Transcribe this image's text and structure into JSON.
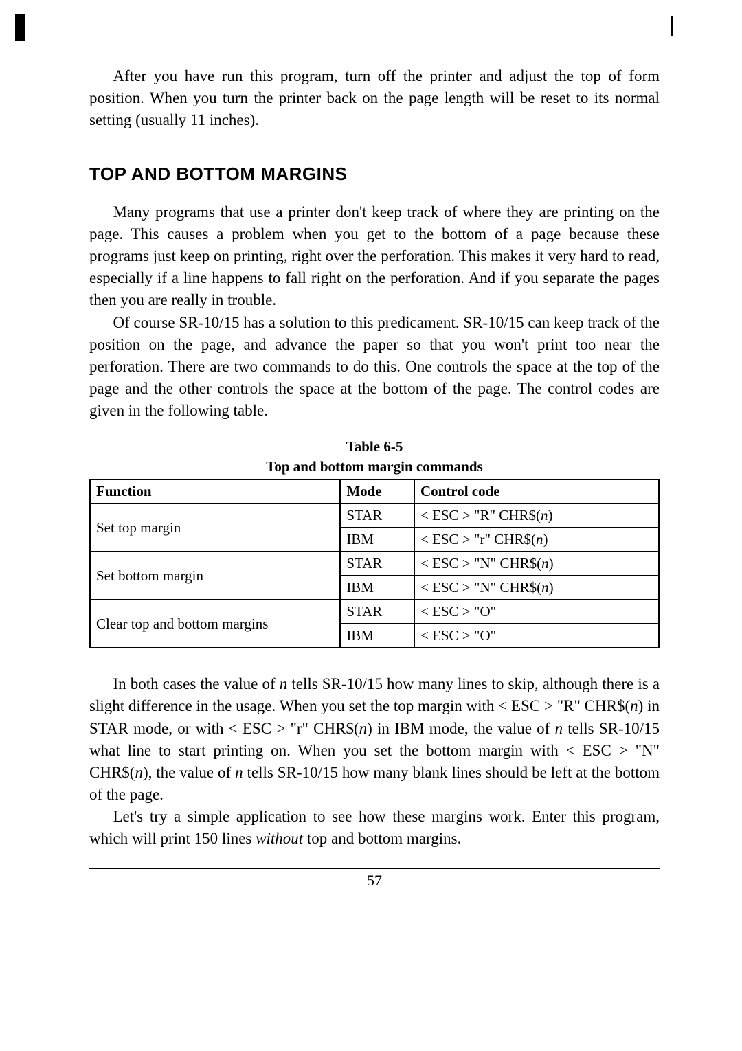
{
  "para1": "After you have run this program, turn off the printer and adjust the top of form position. When you turn the printer back on the page length will be reset to its normal setting (usually 11 inches).",
  "section_title": "TOP AND BOTTOM MARGINS",
  "para2": "Many programs that use a printer don't keep track of where they are printing on the page. This causes a problem when you get to the bottom of a page because these programs just keep on printing, right over the perforation. This makes it very hard to read, especially if a line happens to fall right on the perforation. And if you separate the pages then you are really in trouble.",
  "para3": "Of course SR-10/15 has a solution to this predicament. SR-10/15 can keep track of the position on the page, and advance the paper so that you won't print too near the perforation. There are two commands to do this. One controls the space at the top of the page and the other controls the space at the bottom of the page. The control codes are given in the following table.",
  "table": {
    "caption_line1": "Table 6-5",
    "caption_line2": "Top and bottom margin commands",
    "headers": [
      "Function",
      "Mode",
      "Control code"
    ],
    "rows": [
      {
        "func": "Set top margin",
        "mode": "STAR",
        "code_pre": "< ESC > \"R\" CHR$(",
        "code_n": "n",
        "code_post": ")"
      },
      {
        "func": "",
        "mode": "IBM",
        "code_pre": "< ESC >  \"r\"  CHR$(",
        "code_n": "n",
        "code_post": ")"
      },
      {
        "func": "Set bottom margin",
        "mode": "STAR",
        "code_pre": "< ESC > \"N\" CHR$(",
        "code_n": "n",
        "code_post": ")"
      },
      {
        "func": "",
        "mode": "IBM",
        "code_pre": "< ESC > \"N\" CHR$(",
        "code_n": "n",
        "code_post": ")"
      },
      {
        "func": "Clear top and bottom margins",
        "mode": "STAR",
        "code_pre": "< ESC > \"O\"",
        "code_n": "",
        "code_post": ""
      },
      {
        "func": "",
        "mode": "IBM",
        "code_pre": "< ESC > \"O\"",
        "code_n": "",
        "code_post": ""
      }
    ]
  },
  "para4_parts": {
    "p1": "In both cases the value of ",
    "n1": "n",
    "p2": " tells SR-10/15 how many lines to skip, although there is a slight difference in the usage. When you set the top margin with < ESC > \"R\" CHR$(",
    "n2": "n",
    "p3": ") in STAR mode, or with < ESC > \"r\" CHR$(",
    "n3": "n",
    "p4": ") in IBM mode, the value of ",
    "n4": "n",
    "p5": " tells SR-10/15 what line to start printing on. When you set the bottom margin with < ESC > \"N\" CHR$(",
    "n5": "n",
    "p6": "), the value of ",
    "n6": "n",
    "p7": " tells SR-10/15 how many blank lines should be left at the bottom of the page."
  },
  "para5_parts": {
    "p1": "Let's try a simple application to see how these margins work. Enter this program, which will print 150 lines ",
    "i1": "without",
    "p2": " top and bottom margins."
  },
  "page_number": "57"
}
